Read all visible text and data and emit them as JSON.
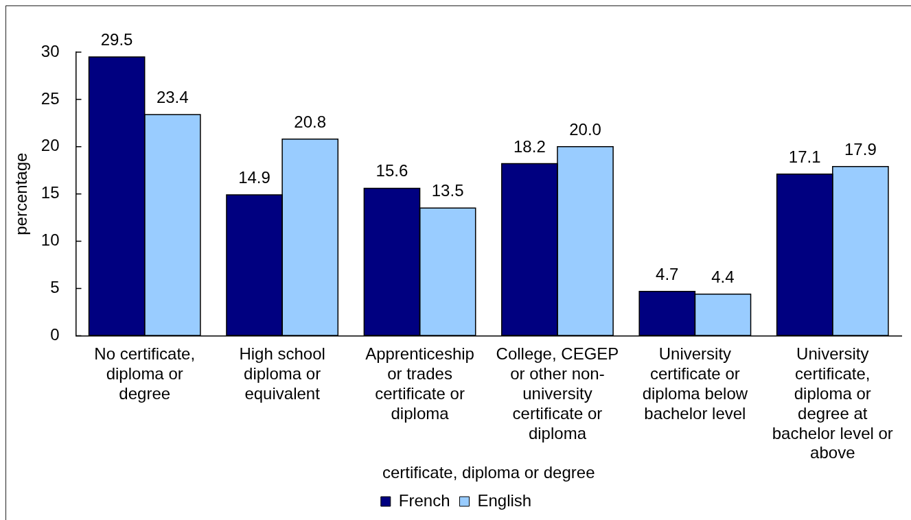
{
  "chart_data": {
    "type": "bar",
    "categories": [
      "No certificate, diploma or degree",
      "High school diploma or equivalent",
      "Apprenticeship or trades certificate or diploma",
      "College, CEGEP or other non-university certificate or diploma",
      "University certificate or diploma below bachelor level",
      "University certificate, diploma or degree at bachelor level or above"
    ],
    "series": [
      {
        "name": "French",
        "color": "#000080",
        "values": [
          29.5,
          14.9,
          15.6,
          18.2,
          4.7,
          17.1
        ],
        "value_labels": [
          "29.5",
          "14.9",
          "15.6",
          "18.2",
          "4.7",
          "17.1"
        ]
      },
      {
        "name": "English",
        "color": "#99ccff",
        "values": [
          23.4,
          20.8,
          13.5,
          20.0,
          4.4,
          17.9
        ],
        "value_labels": [
          "23.4",
          "20.8",
          "13.5",
          "20.0",
          "4.4",
          "17.9"
        ]
      }
    ],
    "xlabel": "certificate, diploma or degree",
    "ylabel": "percentage",
    "ylim": [
      0,
      30
    ],
    "yticks": [
      0,
      5,
      10,
      15,
      20,
      25,
      30
    ],
    "grid": false,
    "legend": "bottom"
  }
}
